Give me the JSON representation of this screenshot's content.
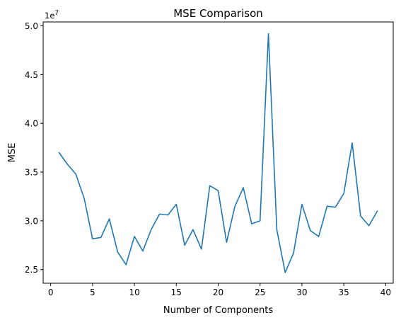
{
  "chart_data": {
    "type": "line",
    "title": "MSE Comparison",
    "xlabel": "Number of Components",
    "ylabel": "MSE",
    "y_offset_label": "1e7",
    "xlim": [
      -0.9,
      40.9
    ],
    "ylim": [
      23.6,
      50.4
    ],
    "x_ticks": [
      0,
      5,
      10,
      15,
      20,
      25,
      30,
      35,
      40
    ],
    "y_ticks": [
      25,
      30,
      35,
      40,
      45,
      50
    ],
    "y_tick_labels": [
      "2.5",
      "3.0",
      "3.5",
      "4.0",
      "4.5",
      "5.0"
    ],
    "grid": false,
    "series": [
      {
        "color": "#1f77b4",
        "x": [
          1,
          2,
          3,
          4,
          5,
          6,
          7,
          8,
          9,
          10,
          11,
          12,
          13,
          14,
          15,
          16,
          17,
          18,
          19,
          20,
          21,
          22,
          23,
          24,
          25,
          26,
          27,
          28,
          29,
          30,
          31,
          32,
          33,
          34,
          35,
          36,
          37,
          38,
          39
        ],
        "y": [
          37.0,
          35.8,
          34.8,
          32.3,
          28.15,
          28.3,
          30.2,
          26.8,
          25.5,
          28.4,
          26.9,
          29.1,
          30.7,
          30.6,
          31.7,
          27.5,
          29.1,
          27.1,
          33.6,
          33.1,
          27.8,
          31.5,
          33.4,
          29.7,
          30.0,
          49.2,
          29.1,
          24.7,
          26.7,
          31.7,
          29.0,
          28.4,
          31.5,
          31.4,
          32.8,
          38.0,
          30.5,
          29.5,
          31.0
        ]
      }
    ]
  }
}
